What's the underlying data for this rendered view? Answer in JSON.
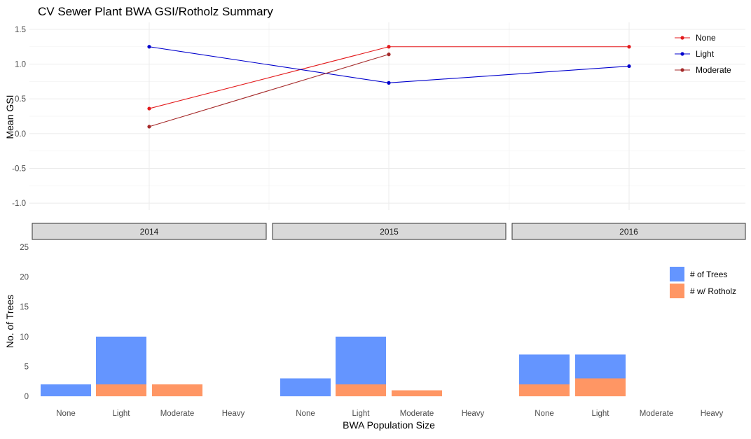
{
  "chart_data": [
    {
      "type": "line",
      "title": "CV Sewer Plant BWA GSI/Rotholz Summary",
      "ylabel": "Mean GSI",
      "x": [
        "2014",
        "2015",
        "2016"
      ],
      "ylim": [
        -1.1,
        1.6
      ],
      "yticks": [
        -1.0,
        -0.5,
        0.0,
        0.5,
        1.0,
        1.5
      ],
      "ytick_labels": [
        "-1.0",
        "-0.5",
        "0.0",
        "0.5",
        "1.0",
        "1.5"
      ],
      "grid": true,
      "legend_position": "top-right",
      "series": [
        {
          "name": "None",
          "color": "#e31a1c",
          "values": [
            0.36,
            1.25,
            1.25
          ]
        },
        {
          "name": "Light",
          "color": "#0000cd",
          "values": [
            1.25,
            0.73,
            0.97
          ]
        },
        {
          "name": "Moderate",
          "color": "#a52a2a",
          "values": [
            0.1,
            1.14,
            null
          ]
        }
      ]
    },
    {
      "type": "bar",
      "facets": [
        "2014",
        "2015",
        "2016"
      ],
      "categories": [
        "None",
        "Light",
        "Moderate",
        "Heavy"
      ],
      "xlabel": "BWA Population Size",
      "ylabel": "No. of Trees",
      "ylim": [
        0,
        25
      ],
      "yticks": [
        0,
        5,
        10,
        15,
        20,
        25
      ],
      "grid": false,
      "legend_position": "right",
      "series": [
        {
          "name": "# of Trees",
          "color": "#6495ff",
          "values": [
            [
              2,
              10,
              0,
              0
            ],
            [
              3,
              10,
              0,
              0
            ],
            [
              7,
              7,
              0,
              0
            ]
          ]
        },
        {
          "name": "# w/ Rotholz",
          "color": "#ff9664",
          "values": [
            [
              0,
              2,
              2,
              0
            ],
            [
              0,
              2,
              1,
              0
            ],
            [
              2,
              3,
              0,
              0
            ]
          ]
        }
      ]
    }
  ]
}
